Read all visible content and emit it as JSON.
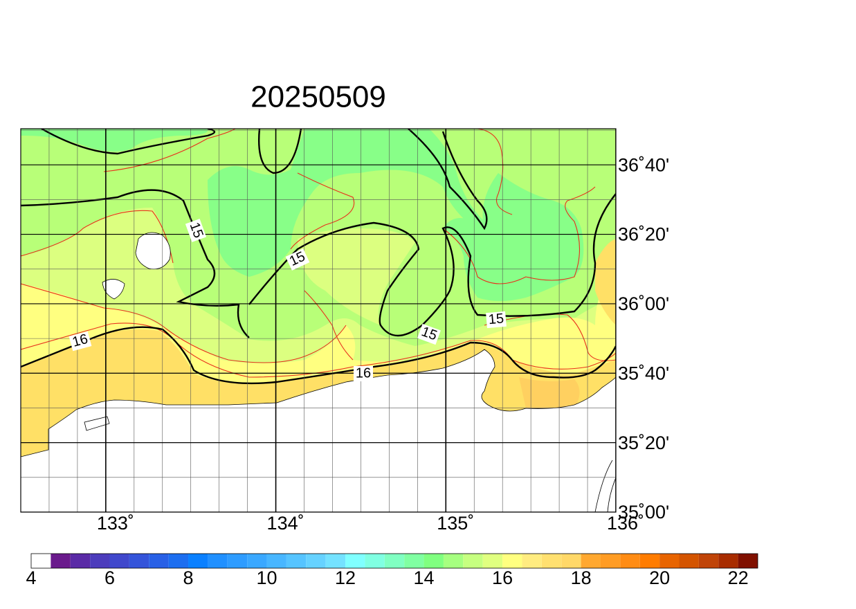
{
  "map": {
    "title": "20250509",
    "xlim": [
      132.5,
      136
    ],
    "ylim": [
      35,
      36.84
    ],
    "xticks": [
      {
        "value": 133,
        "label": "133˚"
      },
      {
        "value": 134,
        "label": "134˚"
      },
      {
        "value": 135,
        "label": "135˚"
      },
      {
        "value": 136,
        "label": "136˚"
      }
    ],
    "yticks": [
      {
        "value": 35,
        "label": "35˚00'"
      },
      {
        "value": 35.3333,
        "label": "35˚20'"
      },
      {
        "value": 35.6667,
        "label": "35˚40'"
      },
      {
        "value": 36,
        "label": "36˚00'"
      },
      {
        "value": 36.3333,
        "label": "36˚20'"
      },
      {
        "value": 36.6667,
        "label": "36˚40'"
      }
    ],
    "contour_labels": [
      "15",
      "15",
      "15",
      "15",
      "16",
      "16"
    ],
    "colorbar": {
      "range": [
        4,
        22.5
      ],
      "step": 0.5,
      "ticks": [
        4,
        6,
        8,
        10,
        12,
        14,
        16,
        18,
        20,
        22
      ],
      "colors": [
        "#ffffff",
        "#6a1a8c",
        "#5a2aa6",
        "#4c3cbc",
        "#4048cc",
        "#3454da",
        "#2860e6",
        "#1c6ef0",
        "#0a80ff",
        "#2090ff",
        "#2e9cff",
        "#3aa8ff",
        "#48b6ff",
        "#56c4ff",
        "#66d2ff",
        "#74e2ff",
        "#80ffff",
        "#80ffe2",
        "#80ffc2",
        "#80ffa2",
        "#80ff80",
        "#a6ff80",
        "#c6ff80",
        "#e0ff80",
        "#ffff80",
        "#ffec80",
        "#ffe070",
        "#ffd868",
        "#ffa830",
        "#ff9c24",
        "#ff8c14",
        "#ff7c00",
        "#e86400",
        "#d45400",
        "#c04408",
        "#a82c00",
        "#801000"
      ]
    }
  }
}
